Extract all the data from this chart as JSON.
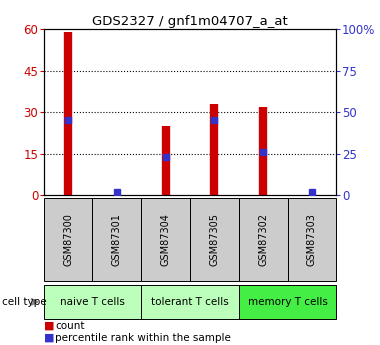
{
  "title": "GDS2327 / gnf1m04707_a_at",
  "samples": [
    "GSM87300",
    "GSM87301",
    "GSM87304",
    "GSM87305",
    "GSM87302",
    "GSM87303"
  ],
  "counts": [
    59,
    0,
    25,
    33,
    32,
    0
  ],
  "percentile_ranks": [
    45,
    2,
    23,
    45,
    26,
    2
  ],
  "ylim_left": [
    0,
    60
  ],
  "ylim_right": [
    0,
    100
  ],
  "yticks_left": [
    0,
    15,
    30,
    45,
    60
  ],
  "yticks_right": [
    0,
    25,
    50,
    75,
    100
  ],
  "ytick_labels_right": [
    "0",
    "25",
    "50",
    "75",
    "100%"
  ],
  "bar_color": "#cc0000",
  "dot_color": "#3333cc",
  "bg_color": "#ffffff",
  "sample_box_color": "#cccccc",
  "left_axis_color": "#cc0000",
  "right_axis_color": "#3333cc",
  "naive_color": "#bbffbb",
  "tolerant_color": "#bbffbb",
  "memory_color": "#44ee44",
  "cell_type_info": [
    {
      "label": "naive T cells",
      "start": 0,
      "end": 2,
      "color": "#bbffbb"
    },
    {
      "label": "tolerant T cells",
      "start": 2,
      "end": 4,
      "color": "#bbffbb"
    },
    {
      "label": "memory T cells",
      "start": 4,
      "end": 6,
      "color": "#44ee44"
    }
  ],
  "grid_ticks": [
    15,
    30,
    45
  ]
}
